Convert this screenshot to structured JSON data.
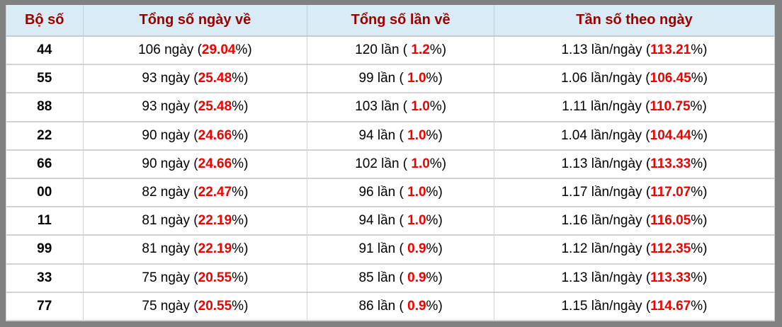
{
  "colors": {
    "frame_gray": "#818181",
    "header_bg": "#d9ecf6",
    "header_text": "#990000",
    "accent_red": "#ee0000",
    "row_bg": "#ffffff",
    "cell_text": "#000000"
  },
  "table": {
    "headers": [
      "Bộ số",
      "Tổng số ngày về",
      "Tổng số lần về",
      "Tần số theo ngày"
    ],
    "rows": [
      {
        "pair": "44",
        "days_prefix": "106 ngày (",
        "days_pct": "29.04",
        "days_suffix": "%)",
        "times_prefix": "120 lần ( ",
        "times_pct": "1.2",
        "times_suffix": "%)",
        "freq_prefix": "1.13 lần/ngày (",
        "freq_pct": "113.21",
        "freq_suffix": "%)"
      },
      {
        "pair": "55",
        "days_prefix": "93 ngày (",
        "days_pct": "25.48",
        "days_suffix": "%)",
        "times_prefix": "99 lần ( ",
        "times_pct": "1.0",
        "times_suffix": "%)",
        "freq_prefix": "1.06 lần/ngày (",
        "freq_pct": "106.45",
        "freq_suffix": "%)"
      },
      {
        "pair": "88",
        "days_prefix": "93 ngày (",
        "days_pct": "25.48",
        "days_suffix": "%)",
        "times_prefix": "103 lần ( ",
        "times_pct": "1.0",
        "times_suffix": "%)",
        "freq_prefix": "1.11 lần/ngày (",
        "freq_pct": "110.75",
        "freq_suffix": "%)"
      },
      {
        "pair": "22",
        "days_prefix": "90 ngày (",
        "days_pct": "24.66",
        "days_suffix": "%)",
        "times_prefix": "94 lần ( ",
        "times_pct": "1.0",
        "times_suffix": "%)",
        "freq_prefix": "1.04 lần/ngày (",
        "freq_pct": "104.44",
        "freq_suffix": "%)"
      },
      {
        "pair": "66",
        "days_prefix": "90 ngày (",
        "days_pct": "24.66",
        "days_suffix": "%)",
        "times_prefix": "102 lần ( ",
        "times_pct": "1.0",
        "times_suffix": "%)",
        "freq_prefix": "1.13 lần/ngày (",
        "freq_pct": "113.33",
        "freq_suffix": "%)"
      },
      {
        "pair": "00",
        "days_prefix": "82 ngày (",
        "days_pct": "22.47",
        "days_suffix": "%)",
        "times_prefix": "96 lần ( ",
        "times_pct": "1.0",
        "times_suffix": "%)",
        "freq_prefix": "1.17 lần/ngày (",
        "freq_pct": "117.07",
        "freq_suffix": "%)"
      },
      {
        "pair": "11",
        "days_prefix": "81 ngày (",
        "days_pct": "22.19",
        "days_suffix": "%)",
        "times_prefix": "94 lần ( ",
        "times_pct": "1.0",
        "times_suffix": "%)",
        "freq_prefix": "1.16 lần/ngày (",
        "freq_pct": "116.05",
        "freq_suffix": "%)"
      },
      {
        "pair": "99",
        "days_prefix": "81 ngày (",
        "days_pct": "22.19",
        "days_suffix": "%)",
        "times_prefix": "91 lần ( ",
        "times_pct": "0.9",
        "times_suffix": "%)",
        "freq_prefix": "1.12 lần/ngày (",
        "freq_pct": "112.35",
        "freq_suffix": "%)"
      },
      {
        "pair": "33",
        "days_prefix": "75 ngày (",
        "days_pct": "20.55",
        "days_suffix": "%)",
        "times_prefix": "85 lần ( ",
        "times_pct": "0.9",
        "times_suffix": "%)",
        "freq_prefix": "1.13 lần/ngày (",
        "freq_pct": "113.33",
        "freq_suffix": "%)"
      },
      {
        "pair": "77",
        "days_prefix": "75 ngày (",
        "days_pct": "20.55",
        "days_suffix": "%)",
        "times_prefix": "86 lần ( ",
        "times_pct": "0.9",
        "times_suffix": "%)",
        "freq_prefix": "1.15 lần/ngày (",
        "freq_pct": "114.67",
        "freq_suffix": "%)"
      }
    ]
  }
}
